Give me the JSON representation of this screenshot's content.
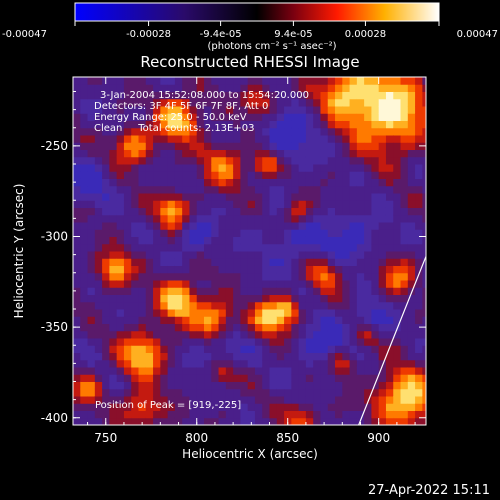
{
  "colorbar": {
    "ticks": [
      "-0.00047",
      "-0.00028",
      "-9.4e-05",
      "9.4e-05",
      "0.00028",
      "0.00047"
    ],
    "tick_values": [
      -0.00047,
      -0.00028,
      -9.4e-05,
      9.4e-05,
      0.00028,
      0.00047
    ],
    "range": [
      -0.00047,
      0.00047
    ],
    "unit_label": "(photons cm⁻² s⁻¹ asec⁻²)",
    "colors": [
      "#0000ff",
      "#000000",
      "#ff0000",
      "#ffff00",
      "#ffffff"
    ]
  },
  "plot": {
    "title": "Reconstructed RHESSI Image",
    "xlabel": "Heliocentric X (arcsec)",
    "ylabel": "Heliocentric Y (arcsec)",
    "xticks": [
      "750",
      "800",
      "850",
      "900"
    ],
    "xtick_values": [
      750,
      800,
      850,
      900
    ],
    "yticks": [
      "-250",
      "-300",
      "-350",
      "-400"
    ],
    "ytick_values": [
      -250,
      -300,
      -350,
      -400
    ],
    "xlim": [
      732,
      926
    ],
    "ylim": [
      -404,
      -212
    ],
    "annotations": [
      "3-Jan-2004 15:52:08.000 to 15:54:20.000",
      "Detectors: 3F 4F 5F 6F 7F 8F, Att 0",
      "Energy Range: 25.0 - 50.0 keV",
      "Clean     Total counts: 2.13E+03"
    ],
    "peak_label": "Position of Peak = [919,-225]",
    "peak": [
      919,
      -225
    ],
    "limb_line": {
      "x": [
        889,
        926
      ],
      "y": [
        -404,
        -311
      ]
    }
  },
  "footer": {
    "timestamp": "27-Apr-2022 15:11"
  }
}
